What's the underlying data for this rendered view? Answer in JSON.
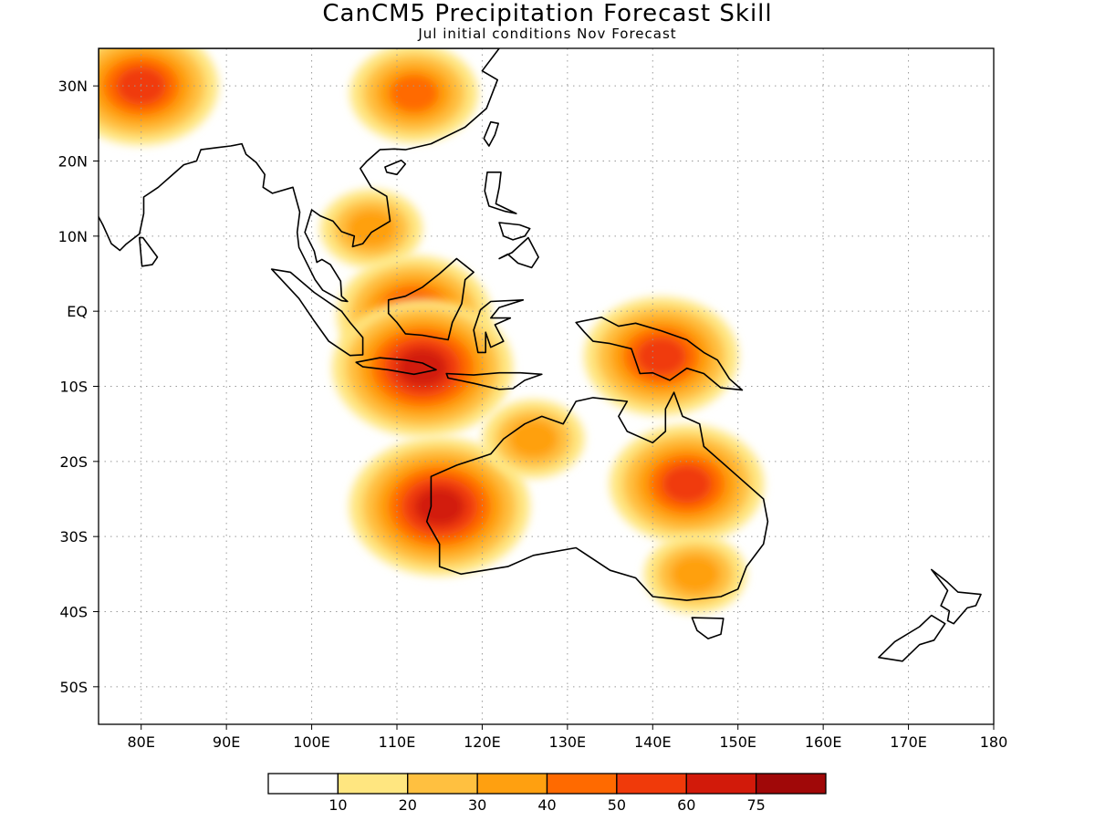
{
  "title": "CanCM5 Precipitation Forecast Skill",
  "subtitle": "Jul initial conditions   Nov Forecast",
  "map": {
    "lon_range": [
      75,
      180
    ],
    "lat_range": [
      -55,
      35
    ],
    "lon_ticks": [
      {
        "value": 80,
        "label": "80E"
      },
      {
        "value": 90,
        "label": "90E"
      },
      {
        "value": 100,
        "label": "100E"
      },
      {
        "value": 110,
        "label": "110E"
      },
      {
        "value": 120,
        "label": "120E"
      },
      {
        "value": 130,
        "label": "130E"
      },
      {
        "value": 140,
        "label": "140E"
      },
      {
        "value": 150,
        "label": "150E"
      },
      {
        "value": 160,
        "label": "160E"
      },
      {
        "value": 170,
        "label": "170E"
      },
      {
        "value": 180,
        "label": "180"
      }
    ],
    "lat_ticks": [
      {
        "value": 30,
        "label": "30N"
      },
      {
        "value": 20,
        "label": "20N"
      },
      {
        "value": 10,
        "label": "10N"
      },
      {
        "value": 0,
        "label": "EQ"
      },
      {
        "value": -10,
        "label": "10S"
      },
      {
        "value": -20,
        "label": "20S"
      },
      {
        "value": -30,
        "label": "30S"
      },
      {
        "value": -40,
        "label": "40S"
      },
      {
        "value": -50,
        "label": "50S"
      }
    ],
    "grid": "dotted"
  },
  "colorbar": {
    "levels": [
      "10",
      "20",
      "30",
      "40",
      "50",
      "60",
      "75"
    ],
    "colors": [
      "#ffffff",
      "#ffe680",
      "#ffc040",
      "#ffa010",
      "#ff6a00",
      "#f03a0a",
      "#d21a0a",
      "#a00808"
    ]
  },
  "skill_regions": [
    {
      "name": "western-china-tibet",
      "lon": 80,
      "lat": 30,
      "level": 50
    },
    {
      "name": "southern-china",
      "lon": 112,
      "lat": 29,
      "level": 40
    },
    {
      "name": "indochina",
      "lon": 107,
      "lat": 11,
      "level": 30
    },
    {
      "name": "borneo",
      "lon": 112,
      "lat": -0.5,
      "level": 50
    },
    {
      "name": "java",
      "lon": 113,
      "lat": -7.5,
      "level": 60
    },
    {
      "name": "new-guinea",
      "lon": 141,
      "lat": -6,
      "level": 50
    },
    {
      "name": "western-australia",
      "lon": 115,
      "lat": -26,
      "level": 60
    },
    {
      "name": "eastern-australia",
      "lon": 144,
      "lat": -23,
      "level": 50
    },
    {
      "name": "northern-australia",
      "lon": 126,
      "lat": -17,
      "level": 30
    },
    {
      "name": "south-east-australia",
      "lon": 145,
      "lat": -35,
      "level": 30
    }
  ],
  "land": [
    {
      "name": "australia",
      "coords": [
        [
          114,
          -22
        ],
        [
          114,
          -26
        ],
        [
          113.5,
          -28
        ],
        [
          115,
          -31
        ],
        [
          115,
          -34
        ],
        [
          117.5,
          -35
        ],
        [
          123,
          -34
        ],
        [
          126,
          -32.5
        ],
        [
          131,
          -31.5
        ],
        [
          135,
          -34.5
        ],
        [
          138,
          -35.5
        ],
        [
          140,
          -38
        ],
        [
          144,
          -38.5
        ],
        [
          148,
          -38
        ],
        [
          150,
          -37
        ],
        [
          151,
          -34
        ],
        [
          153,
          -31
        ],
        [
          153.5,
          -28
        ],
        [
          153,
          -25
        ],
        [
          150,
          -22
        ],
        [
          148,
          -20
        ],
        [
          146,
          -18
        ],
        [
          145.5,
          -15
        ],
        [
          143.5,
          -14
        ],
        [
          142.5,
          -10.8
        ],
        [
          141.5,
          -13
        ],
        [
          141.5,
          -16
        ],
        [
          140,
          -17.5
        ],
        [
          137,
          -16
        ],
        [
          136,
          -14
        ],
        [
          137,
          -12
        ],
        [
          133,
          -11.5
        ],
        [
          131,
          -12
        ],
        [
          129.5,
          -15
        ],
        [
          127,
          -14
        ],
        [
          125,
          -15
        ],
        [
          122.5,
          -17
        ],
        [
          121,
          -19
        ],
        [
          117,
          -20.5
        ]
      ]
    },
    {
      "name": "tasmania",
      "coords": [
        [
          144.6,
          -40.8
        ],
        [
          148.3,
          -40.9
        ],
        [
          148,
          -43
        ],
        [
          146.5,
          -43.6
        ],
        [
          145.2,
          -42.5
        ]
      ]
    },
    {
      "name": "new-guinea",
      "coords": [
        [
          131,
          -1.5
        ],
        [
          134,
          -0.8
        ],
        [
          136,
          -2
        ],
        [
          138,
          -1.6
        ],
        [
          141,
          -2.6
        ],
        [
          144,
          -3.8
        ],
        [
          146,
          -5.5
        ],
        [
          147.6,
          -6.5
        ],
        [
          149,
          -9
        ],
        [
          150.5,
          -10.5
        ],
        [
          148,
          -10.2
        ],
        [
          146,
          -8.3
        ],
        [
          144,
          -7.6
        ],
        [
          142,
          -9.2
        ],
        [
          140,
          -8.2
        ],
        [
          138.5,
          -8.3
        ],
        [
          137.5,
          -5
        ],
        [
          135,
          -4.3
        ],
        [
          133,
          -4
        ],
        [
          132,
          -2.8
        ]
      ]
    },
    {
      "name": "borneo",
      "coords": [
        [
          109,
          1.5
        ],
        [
          111,
          2
        ],
        [
          113,
          3.2
        ],
        [
          115,
          5
        ],
        [
          117,
          7
        ],
        [
          119,
          5.2
        ],
        [
          118,
          4.2
        ],
        [
          117.6,
          1
        ],
        [
          116.5,
          -1.5
        ],
        [
          116,
          -3.8
        ],
        [
          114.5,
          -3.5
        ],
        [
          113,
          -3.2
        ],
        [
          111,
          -3
        ],
        [
          110,
          -1.5
        ],
        [
          109,
          -0.3
        ]
      ]
    },
    {
      "name": "sumatra",
      "coords": [
        [
          95.3,
          5.6
        ],
        [
          97.5,
          5.2
        ],
        [
          100.3,
          2.5
        ],
        [
          103.5,
          0
        ],
        [
          104.5,
          -1.5
        ],
        [
          106,
          -3.5
        ],
        [
          106,
          -5.8
        ],
        [
          104.5,
          -5.9
        ],
        [
          102,
          -4
        ],
        [
          100.3,
          -1.3
        ],
        [
          98.5,
          1.7
        ]
      ]
    },
    {
      "name": "java",
      "coords": [
        [
          105.2,
          -6.8
        ],
        [
          108,
          -6.2
        ],
        [
          111,
          -6.5
        ],
        [
          113,
          -6.9
        ],
        [
          114.6,
          -7.8
        ],
        [
          112,
          -8.4
        ],
        [
          109,
          -7.8
        ],
        [
          106,
          -7.4
        ]
      ]
    },
    {
      "name": "sulawesi",
      "coords": [
        [
          119.5,
          -5.5
        ],
        [
          119,
          -2.5
        ],
        [
          119.8,
          0.2
        ],
        [
          121,
          1.3
        ],
        [
          124.8,
          1.5
        ],
        [
          122,
          0.5
        ],
        [
          121,
          -0.9
        ],
        [
          123.3,
          -0.9
        ],
        [
          121.5,
          -1.8
        ],
        [
          122.5,
          -4
        ],
        [
          121,
          -4.8
        ],
        [
          120.4,
          -2.8
        ],
        [
          120.4,
          -5.5
        ]
      ]
    },
    {
      "name": "lesser-sundas",
      "coords": [
        [
          115.8,
          -8.3
        ],
        [
          119,
          -8.5
        ],
        [
          122,
          -8.2
        ],
        [
          124.5,
          -8.2
        ],
        [
          127,
          -8.4
        ],
        [
          125,
          -9.2
        ],
        [
          123.6,
          -10.3
        ],
        [
          122,
          -10.4
        ],
        [
          119,
          -9.6
        ],
        [
          116,
          -8.9
        ]
      ]
    },
    {
      "name": "luzon",
      "coords": [
        [
          120.6,
          18.5
        ],
        [
          122.2,
          18.5
        ],
        [
          122,
          16.5
        ],
        [
          121.6,
          14.3
        ],
        [
          124,
          13
        ],
        [
          122.7,
          13.3
        ],
        [
          120.8,
          14
        ],
        [
          120.3,
          16
        ]
      ]
    },
    {
      "name": "mindanao",
      "coords": [
        [
          122,
          7
        ],
        [
          123.5,
          7.8
        ],
        [
          125.4,
          9.8
        ],
        [
          126.6,
          7.2
        ],
        [
          125.8,
          5.8
        ],
        [
          124.2,
          6.4
        ],
        [
          123,
          7.6
        ]
      ]
    },
    {
      "name": "visayas",
      "coords": [
        [
          122,
          11.8
        ],
        [
          124.4,
          11.5
        ],
        [
          125.6,
          11
        ],
        [
          125,
          10
        ],
        [
          123.6,
          9.5
        ],
        [
          122.5,
          10
        ]
      ]
    },
    {
      "name": "taiwan",
      "coords": [
        [
          120.2,
          23
        ],
        [
          121,
          25.2
        ],
        [
          121.9,
          25
        ],
        [
          121.5,
          23.5
        ],
        [
          120.8,
          22
        ]
      ]
    },
    {
      "name": "hainan",
      "coords": [
        [
          108.6,
          19.2
        ],
        [
          110.5,
          20.1
        ],
        [
          111,
          19.6
        ],
        [
          110,
          18.2
        ],
        [
          108.8,
          18.5
        ]
      ]
    },
    {
      "name": "sri-lanka",
      "coords": [
        [
          79.8,
          9.8
        ],
        [
          80.2,
          9.8
        ],
        [
          81.9,
          7.2
        ],
        [
          81.3,
          6.2
        ],
        [
          80.1,
          6
        ]
      ]
    },
    {
      "name": "nz-north",
      "coords": [
        [
          172.7,
          -34.4
        ],
        [
          174.5,
          -36
        ],
        [
          175.8,
          -37.4
        ],
        [
          178.5,
          -37.7
        ],
        [
          177.9,
          -39.2
        ],
        [
          176.9,
          -39.5
        ],
        [
          175.3,
          -41.6
        ],
        [
          174.6,
          -41.2
        ],
        [
          174.8,
          -39.9
        ],
        [
          173.8,
          -39.2
        ],
        [
          174.6,
          -37.2
        ]
      ]
    },
    {
      "name": "nz-south",
      "coords": [
        [
          172.7,
          -40.5
        ],
        [
          174.3,
          -41.6
        ],
        [
          173,
          -43.8
        ],
        [
          171.3,
          -44.4
        ],
        [
          169.3,
          -46.6
        ],
        [
          166.5,
          -46.1
        ],
        [
          168.4,
          -44
        ],
        [
          171.3,
          -42
        ]
      ]
    },
    {
      "name": "mainland-asia",
      "coords": [
        [
          75,
          23
        ],
        [
          75,
          35
        ],
        [
          122,
          35
        ],
        [
          120,
          32
        ],
        [
          121.8,
          30.8
        ],
        [
          120.5,
          27
        ],
        [
          118,
          24.5
        ],
        [
          114,
          22.3
        ],
        [
          111,
          21.5
        ],
        [
          109.7,
          21.6
        ],
        [
          108,
          21.5
        ],
        [
          106.5,
          20
        ],
        [
          105.7,
          19
        ],
        [
          107,
          16.5
        ],
        [
          108.8,
          15.3
        ],
        [
          109.2,
          12
        ],
        [
          107,
          10.5
        ],
        [
          106,
          9
        ],
        [
          104.8,
          8.6
        ],
        [
          105,
          10
        ],
        [
          103.5,
          10.6
        ],
        [
          102.5,
          12
        ],
        [
          101,
          12.7
        ],
        [
          100,
          13.5
        ],
        [
          99.2,
          10.5
        ],
        [
          100.3,
          8
        ],
        [
          100.6,
          6.5
        ],
        [
          101.2,
          6.9
        ],
        [
          102.2,
          6.2
        ],
        [
          103.4,
          4
        ],
        [
          103.5,
          2
        ],
        [
          104.2,
          1.3
        ],
        [
          103.5,
          1.4
        ],
        [
          101.3,
          2.8
        ],
        [
          100.4,
          4.2
        ],
        [
          98.5,
          8.5
        ],
        [
          98.3,
          10.5
        ],
        [
          98.6,
          13.2
        ],
        [
          97.8,
          16.5
        ],
        [
          95.4,
          15.7
        ],
        [
          94.3,
          16.5
        ],
        [
          94.5,
          18.2
        ],
        [
          93.5,
          19.8
        ],
        [
          92.3,
          20.9
        ],
        [
          91.8,
          22.3
        ],
        [
          90.5,
          22
        ],
        [
          89,
          21.8
        ],
        [
          87,
          21.5
        ],
        [
          86.5,
          20
        ],
        [
          85,
          19.5
        ],
        [
          83.5,
          18
        ],
        [
          82,
          16.5
        ],
        [
          80.3,
          15.2
        ],
        [
          80.3,
          13
        ],
        [
          79.8,
          10.3
        ],
        [
          78.2,
          8.9
        ],
        [
          77.5,
          8.1
        ],
        [
          76.5,
          9
        ],
        [
          75.5,
          11.5
        ],
        [
          74.8,
          13
        ],
        [
          74.4,
          15
        ],
        [
          73.4,
          16
        ],
        [
          72.8,
          19
        ],
        [
          72.7,
          21
        ]
      ]
    }
  ]
}
